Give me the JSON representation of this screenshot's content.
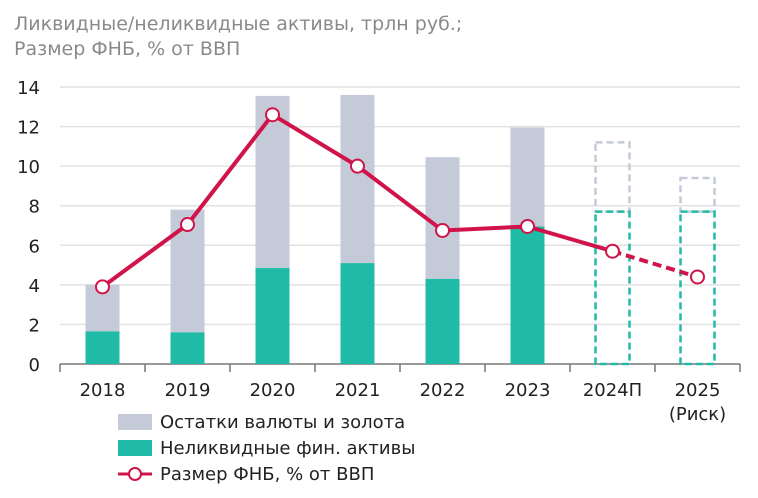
{
  "chart_data": {
    "type": "bar",
    "title_lines": [
      "Ликвидные/неликвидные активы, трлн руб.;",
      "Размер ФНБ, % от ВВП"
    ],
    "categories": [
      "2018",
      "2019",
      "2020",
      "2021",
      "2022",
      "2023",
      "2024П",
      "2025\n(Риск)"
    ],
    "category_labels": [
      [
        "2018"
      ],
      [
        "2019"
      ],
      [
        "2020"
      ],
      [
        "2021"
      ],
      [
        "2022"
      ],
      [
        "2023"
      ],
      [
        "2024П"
      ],
      [
        "2025",
        "(Риск)"
      ]
    ],
    "ylim": [
      0,
      14
    ],
    "yticks": [
      0,
      2,
      4,
      6,
      8,
      10,
      12,
      14
    ],
    "grid": true,
    "stacked": true,
    "series": [
      {
        "name": "Неликвидные фин. активы",
        "type": "bar",
        "color": "#20bba6",
        "values": [
          1.65,
          1.6,
          4.85,
          5.1,
          4.3,
          6.95,
          7.7,
          7.7
        ]
      },
      {
        "name": "Остатки валюты и золота",
        "type": "bar",
        "color": "#c5cad9",
        "totals": [
          4.0,
          7.8,
          13.55,
          13.6,
          10.45,
          11.95,
          11.2,
          9.4
        ]
      },
      {
        "name": "Размер ФНБ, % от ВВП",
        "type": "line",
        "color": "#d0144a",
        "values": [
          3.9,
          7.05,
          12.6,
          10.0,
          6.75,
          6.95,
          5.7,
          4.4
        ]
      }
    ],
    "forecast_categories": [
      "2024П",
      "2025\n(Риск)"
    ],
    "legend_position": "bottom-left"
  }
}
